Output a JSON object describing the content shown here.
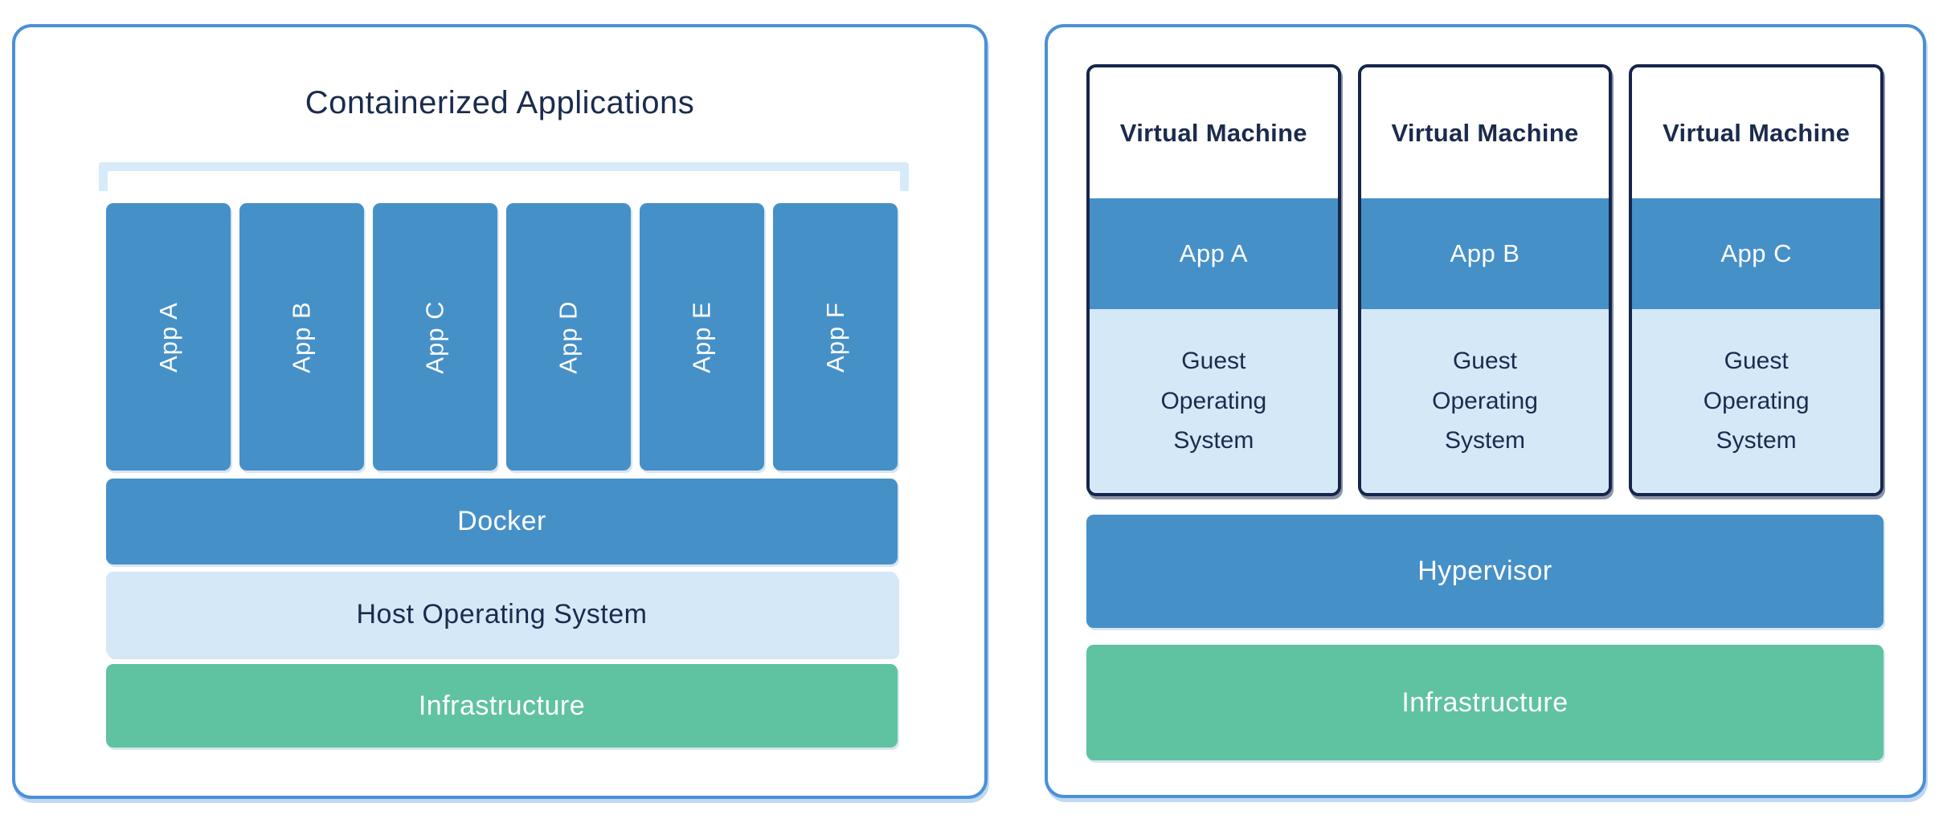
{
  "colors": {
    "panel_border": "#4A90D8",
    "bar_blue": "#4690C8",
    "bar_light_blue": "#D4E8F8",
    "bar_green": "#5FC2A0",
    "navy_text": "#1B2B4D",
    "vm_border": "#16254C",
    "white_text": "#FFFFFF",
    "bracket_blue": "#D7EAF9"
  },
  "left_panel": {
    "title": "Containerized Applications",
    "apps": [
      "App A",
      "App B",
      "App C",
      "App D",
      "App E",
      "App F"
    ],
    "docker_label": "Docker",
    "host_os_label": "Host Operating System",
    "infrastructure_label": "Infrastructure"
  },
  "right_panel": {
    "vm_title": "Virtual Machine",
    "vm_apps": [
      "App A",
      "App B",
      "App C"
    ],
    "guest_os_label": "Guest Operating System",
    "hypervisor_label": "Hypervisor",
    "infrastructure_label": "Infrastructure"
  }
}
